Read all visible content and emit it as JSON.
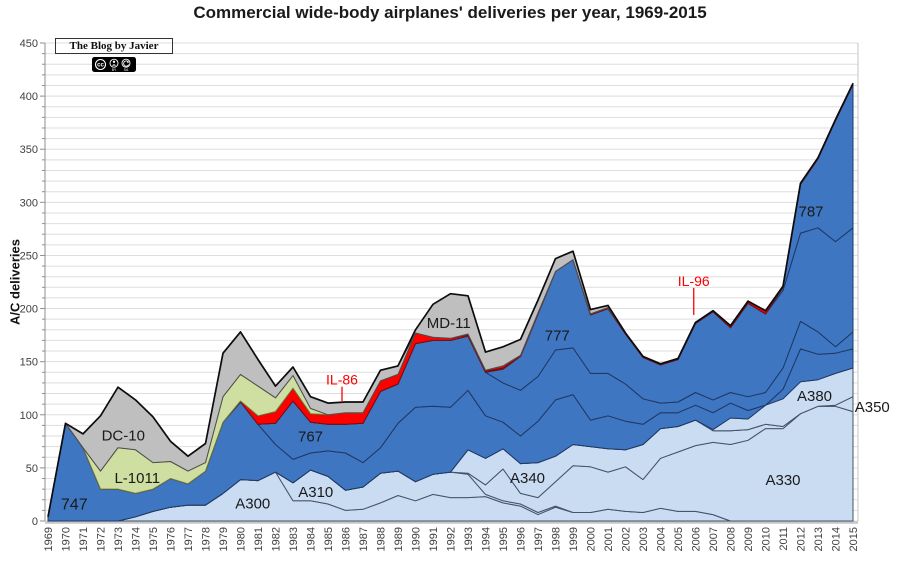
{
  "chart_data": {
    "type": "area",
    "stacked": true,
    "title": "Commercial wide-body airplanes' deliveries per year, 1969-2015",
    "xlabel": "",
    "ylabel": "A/C deliveries",
    "ylim": [
      0,
      450
    ],
    "ytick_step": 50,
    "grid_step": 10,
    "grid": true,
    "legend_position": "none-inline-labels",
    "x": [
      1969,
      1970,
      1971,
      1972,
      1973,
      1974,
      1975,
      1976,
      1977,
      1978,
      1979,
      1980,
      1981,
      1982,
      1983,
      1984,
      1985,
      1986,
      1987,
      1988,
      1989,
      1990,
      1991,
      1992,
      1993,
      1994,
      1995,
      1996,
      1997,
      1998,
      1999,
      2000,
      2001,
      2002,
      2003,
      2004,
      2005,
      2006,
      2007,
      2008,
      2009,
      2010,
      2011,
      2012,
      2013,
      2014,
      2015
    ],
    "series": [
      {
        "name": "A300",
        "group": "Airbus",
        "color": "#c9dcf2",
        "edge": "#44546a",
        "values": [
          0,
          0,
          0,
          0,
          0,
          4,
          9,
          13,
          15,
          15,
          26,
          39,
          38,
          46,
          19,
          19,
          16,
          10,
          11,
          17,
          24,
          19,
          25,
          22,
          22,
          23,
          17,
          14,
          6,
          13,
          8,
          8,
          11,
          9,
          8,
          12,
          9,
          9,
          6,
          0,
          0,
          0,
          0,
          0,
          0,
          0,
          0
        ]
      },
      {
        "name": "A310",
        "group": "Airbus",
        "color": "#c9dcf2",
        "edge": "#44546a",
        "values": [
          0,
          0,
          0,
          0,
          0,
          0,
          0,
          0,
          0,
          0,
          0,
          0,
          0,
          0,
          17,
          29,
          26,
          19,
          21,
          28,
          23,
          18,
          19,
          24,
          22,
          2,
          2,
          2,
          2,
          1,
          0,
          0,
          0,
          0,
          0,
          0,
          0,
          0,
          0,
          0,
          0,
          0,
          0,
          0,
          0,
          0,
          0
        ]
      },
      {
        "name": "A330",
        "group": "Airbus",
        "color": "#c9dcf2",
        "edge": "#44546a",
        "values": [
          0,
          0,
          0,
          0,
          0,
          0,
          0,
          0,
          0,
          0,
          0,
          0,
          0,
          0,
          0,
          0,
          0,
          0,
          0,
          0,
          0,
          0,
          0,
          0,
          1,
          9,
          30,
          10,
          14,
          23,
          44,
          43,
          35,
          42,
          31,
          47,
          56,
          62,
          68,
          72,
          76,
          87,
          87,
          101,
          108,
          108,
          103
        ]
      },
      {
        "name": "A340",
        "group": "Airbus",
        "color": "#c9dcf2",
        "edge": "#44546a",
        "values": [
          0,
          0,
          0,
          0,
          0,
          0,
          0,
          0,
          0,
          0,
          0,
          0,
          0,
          0,
          0,
          0,
          0,
          0,
          0,
          0,
          0,
          0,
          0,
          0,
          22,
          25,
          19,
          28,
          33,
          24,
          20,
          19,
          22,
          16,
          33,
          28,
          24,
          24,
          11,
          13,
          10,
          4,
          2,
          0,
          0,
          0,
          0
        ]
      },
      {
        "name": "A350",
        "group": "Airbus",
        "color": "#c9dcf2",
        "edge": "#44546a",
        "values": [
          0,
          0,
          0,
          0,
          0,
          0,
          0,
          0,
          0,
          0,
          0,
          0,
          0,
          0,
          0,
          0,
          0,
          0,
          0,
          0,
          0,
          0,
          0,
          0,
          0,
          0,
          0,
          0,
          0,
          0,
          0,
          0,
          0,
          0,
          0,
          0,
          0,
          0,
          0,
          0,
          0,
          0,
          0,
          0,
          0,
          1,
          14
        ]
      },
      {
        "name": "A380",
        "group": "Airbus",
        "color": "#c9dcf2",
        "edge": "#44546a",
        "values": [
          0,
          0,
          0,
          0,
          0,
          0,
          0,
          0,
          0,
          0,
          0,
          0,
          0,
          0,
          0,
          0,
          0,
          0,
          0,
          0,
          0,
          0,
          0,
          0,
          0,
          0,
          0,
          0,
          0,
          0,
          0,
          0,
          0,
          0,
          0,
          0,
          0,
          0,
          1,
          12,
          10,
          18,
          26,
          30,
          25,
          30,
          27
        ]
      },
      {
        "name": "747",
        "group": "Boeing",
        "color": "#3e76c2",
        "edge": "#1f3864",
        "values": [
          4,
          92,
          69,
          30,
          30,
          22,
          21,
          27,
          20,
          32,
          67,
          73,
          53,
          26,
          22,
          16,
          24,
          35,
          23,
          24,
          45,
          70,
          64,
          61,
          56,
          40,
          25,
          26,
          39,
          53,
          47,
          25,
          31,
          27,
          19,
          15,
          13,
          14,
          16,
          14,
          8,
          0,
          9,
          31,
          24,
          19,
          18
        ]
      },
      {
        "name": "767",
        "group": "Boeing",
        "color": "#3e76c2",
        "edge": "#1f3864",
        "values": [
          0,
          0,
          0,
          0,
          0,
          0,
          0,
          0,
          0,
          0,
          0,
          0,
          0,
          20,
          55,
          29,
          25,
          27,
          37,
          53,
          37,
          60,
          62,
          63,
          51,
          41,
          37,
          43,
          42,
          47,
          44,
          44,
          40,
          35,
          24,
          9,
          10,
          12,
          12,
          10,
          13,
          12,
          20,
          26,
          21,
          6,
          16
        ]
      },
      {
        "name": "777",
        "group": "Boeing",
        "color": "#3e76c2",
        "edge": "#1f3864",
        "values": [
          0,
          0,
          0,
          0,
          0,
          0,
          0,
          0,
          0,
          0,
          0,
          0,
          0,
          0,
          0,
          0,
          0,
          0,
          0,
          0,
          0,
          0,
          0,
          0,
          0,
          0,
          13,
          32,
          59,
          74,
          83,
          55,
          61,
          47,
          39,
          36,
          40,
          65,
          83,
          61,
          88,
          74,
          73,
          83,
          98,
          99,
          98
        ]
      },
      {
        "name": "787",
        "group": "Boeing",
        "color": "#3e76c2",
        "edge": "#1f3864",
        "values": [
          0,
          0,
          0,
          0,
          0,
          0,
          0,
          0,
          0,
          0,
          0,
          0,
          0,
          0,
          0,
          0,
          0,
          0,
          0,
          0,
          0,
          0,
          0,
          0,
          0,
          0,
          0,
          0,
          0,
          0,
          0,
          0,
          0,
          0,
          0,
          0,
          0,
          0,
          0,
          0,
          0,
          0,
          3,
          46,
          65,
          114,
          135
        ]
      },
      {
        "name": "IL-86",
        "group": "Ilyushin",
        "color": "#ff0000",
        "edge": "#7b0c0c",
        "values": [
          0,
          0,
          0,
          0,
          0,
          0,
          0,
          0,
          0,
          0,
          0,
          1,
          8,
          11,
          12,
          8,
          9,
          11,
          10,
          10,
          9,
          10,
          3,
          2,
          1,
          1,
          1,
          0,
          0,
          0,
          0,
          0,
          0,
          0,
          0,
          0,
          0,
          0,
          0,
          0,
          0,
          0,
          0,
          0,
          0,
          0,
          0
        ]
      },
      {
        "name": "IL-96",
        "group": "Ilyushin",
        "color": "#ff0000",
        "edge": "#7b0c0c",
        "values": [
          0,
          0,
          0,
          0,
          0,
          0,
          0,
          0,
          0,
          0,
          0,
          0,
          0,
          0,
          0,
          0,
          0,
          0,
          0,
          0,
          0,
          0,
          0,
          0,
          1,
          1,
          2,
          1,
          1,
          0,
          0,
          1,
          1,
          1,
          1,
          1,
          1,
          1,
          1,
          2,
          2,
          3,
          1,
          1,
          1,
          1,
          1
        ]
      },
      {
        "name": "L-1011",
        "group": "Lockheed",
        "color": "#cfdfa2",
        "edge": "#6a7d3c",
        "values": [
          0,
          0,
          0,
          17,
          39,
          41,
          25,
          16,
          12,
          8,
          24,
          25,
          28,
          13,
          12,
          5,
          0,
          0,
          0,
          0,
          0,
          0,
          0,
          0,
          0,
          0,
          0,
          0,
          0,
          0,
          0,
          0,
          0,
          0,
          0,
          0,
          0,
          0,
          0,
          0,
          0,
          0,
          0,
          0,
          0,
          0,
          0
        ]
      },
      {
        "name": "DC-10",
        "group": "McDonnell Douglas",
        "color": "#bfbfbf",
        "edge": "#4d4d4d",
        "values": [
          0,
          0,
          13,
          52,
          57,
          47,
          43,
          19,
          14,
          18,
          41,
          40,
          25,
          11,
          8,
          11,
          11,
          10,
          10,
          10,
          8,
          0,
          0,
          0,
          0,
          0,
          0,
          0,
          0,
          0,
          0,
          0,
          0,
          0,
          0,
          0,
          0,
          0,
          0,
          0,
          0,
          0,
          0,
          0,
          0,
          0,
          0
        ]
      },
      {
        "name": "MD-11",
        "group": "McDonnell Douglas",
        "color": "#bfbfbf",
        "edge": "#4d4d4d",
        "values": [
          0,
          0,
          0,
          0,
          0,
          0,
          0,
          0,
          0,
          0,
          0,
          0,
          0,
          0,
          0,
          0,
          0,
          0,
          0,
          0,
          0,
          3,
          31,
          42,
          36,
          17,
          18,
          15,
          12,
          12,
          8,
          4,
          2,
          0,
          0,
          0,
          0,
          0,
          0,
          0,
          0,
          0,
          0,
          0,
          0,
          0,
          0
        ]
      }
    ],
    "annotations": [
      {
        "text": "747",
        "year": 1970.5,
        "value": 15,
        "color": "#1a1a1a",
        "size": 16
      },
      {
        "text": "DC-10",
        "year": 1973.3,
        "value": 80,
        "color": "#1a1a1a",
        "size": 15
      },
      {
        "text": "L-1011",
        "year": 1974.1,
        "value": 40,
        "color": "#1a1a1a",
        "size": 15
      },
      {
        "text": "A300",
        "year": 1980.7,
        "value": 16,
        "color": "#1a1a1a",
        "size": 15
      },
      {
        "text": "A310",
        "year": 1984.3,
        "value": 27,
        "color": "#1a1a1a",
        "size": 15
      },
      {
        "text": "767",
        "year": 1984.0,
        "value": 79,
        "color": "#1a1a1a",
        "size": 15
      },
      {
        "text": "IL-86",
        "year": 1985.8,
        "value": 133,
        "color": "#fe0000",
        "size": 14,
        "pointer_to": 112
      },
      {
        "text": "MD-11",
        "year": 1991.9,
        "value": 186,
        "color": "#1a1a1a",
        "size": 15
      },
      {
        "text": "777",
        "year": 1998.1,
        "value": 174,
        "color": "#1a1a1a",
        "size": 15
      },
      {
        "text": "A340",
        "year": 1996.4,
        "value": 40,
        "color": "#1a1a1a",
        "size": 15
      },
      {
        "text": "IL-96",
        "year": 2005.9,
        "value": 226,
        "color": "#fe0000",
        "size": 14,
        "pointer_to": 194
      },
      {
        "text": "787",
        "year": 2012.6,
        "value": 291,
        "color": "#1a1a1a",
        "size": 15
      },
      {
        "text": "A380",
        "year": 2012.8,
        "value": 117,
        "color": "#1a1a1a",
        "size": 15
      },
      {
        "text": "A330",
        "year": 2011.0,
        "value": 38,
        "color": "#1a1a1a",
        "size": 15
      },
      {
        "text": "A350",
        "year": 2016.1,
        "value": 107,
        "color": "#1a1a1a",
        "size": 15
      }
    ],
    "total_line_color": "#0d0d0d",
    "grid_color": "#dedede",
    "axis_text_color": "#404040",
    "watermark": {
      "text": "The Blog by Javier",
      "license": "CC BY-SA"
    }
  }
}
